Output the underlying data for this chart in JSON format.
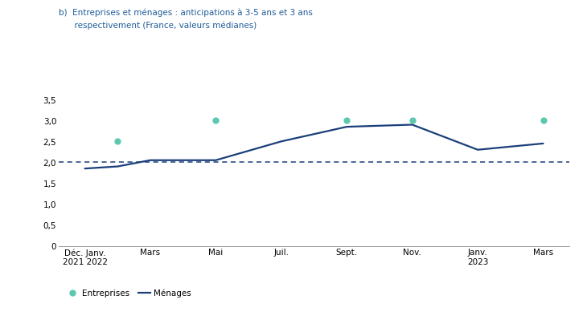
{
  "title_line1": "b)  Entreprises et ménages : anticipations à 3-5 ans et 3 ans",
  "title_line2": "      respectivement (France, valeurs médianes)",
  "title_color": "#1F5C99",
  "title_fontsize": 7.5,
  "x_labels": [
    "Déc. Janv.\n2021 2022",
    "Mars",
    "Mai",
    "Juil.",
    "Sept.",
    "Nov.",
    "Janv.\n2023",
    "Mars"
  ],
  "x_positions": [
    0,
    1,
    2,
    3,
    4,
    5,
    6,
    7
  ],
  "menages_x": [
    0,
    0.5,
    1,
    2,
    3,
    4,
    5,
    6,
    7
  ],
  "menages_y": [
    1.85,
    1.9,
    2.05,
    2.05,
    2.5,
    2.85,
    2.9,
    2.3,
    2.45
  ],
  "entreprises_x_vals": [
    0.5,
    2,
    4,
    5,
    7
  ],
  "entreprises_y_vals": [
    2.5,
    3.0,
    3.0,
    3.0,
    3.0
  ],
  "menages_color": "#1A3F7A",
  "entreprises_color": "#5BC8AF",
  "dashed_line_y": 2.0,
  "dashed_line_color": "#1A3F7A",
  "ylim": [
    0,
    3.7
  ],
  "yticks": [
    0,
    0.5,
    1.0,
    1.5,
    2.0,
    2.5,
    3.0,
    3.5
  ],
  "ytick_labels": [
    "0",
    "0,5",
    "1,0",
    "1,5",
    "2,0",
    "2,5",
    "3,0",
    "3,5"
  ],
  "legend_entreprises": "Entreprises",
  "legend_menages": "Ménages",
  "bg_color": "#FFFFFF"
}
